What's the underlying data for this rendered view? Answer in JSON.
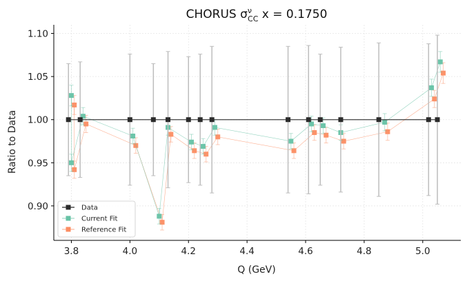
{
  "chart_data": {
    "type": "scatter",
    "title": "CHORUS σ",
    "title_sup": "ν",
    "title_sub": "CC",
    "title_suffix": " x = 0.1750",
    "xlabel": "Q (GeV)",
    "ylabel": "Ratio to Data",
    "xlim": [
      3.74,
      5.13
    ],
    "ylim": [
      0.86,
      1.11
    ],
    "xticks": [
      3.8,
      4.0,
      4.2,
      4.4,
      4.6,
      4.8,
      5.0
    ],
    "xtick_labels": [
      "3.8",
      "4.0",
      "4.2",
      "4.4",
      "4.6",
      "4.8",
      "5.0"
    ],
    "yticks": [
      0.9,
      0.95,
      1.0,
      1.05,
      1.1
    ],
    "ytick_labels": [
      "0.90",
      "0.95",
      "1.00",
      "1.05",
      "1.10"
    ],
    "grid": true,
    "legend_position": "lower-left",
    "series": [
      {
        "name": "Data",
        "color": "#2b2b2b",
        "x": [
          3.79,
          3.83,
          4.0,
          4.08,
          4.13,
          4.2,
          4.24,
          4.28,
          4.54,
          4.61,
          4.65,
          4.72,
          4.85,
          5.02,
          5.05
        ],
        "y": [
          1.0,
          1.0,
          1.0,
          1.0,
          1.0,
          1.0,
          1.0,
          1.0,
          1.0,
          1.0,
          1.0,
          1.0,
          1.0,
          1.0,
          1.0
        ],
        "err": [
          0.065,
          0.067,
          0.076,
          0.065,
          0.079,
          0.073,
          0.076,
          0.085,
          0.085,
          0.086,
          0.076,
          0.084,
          0.089,
          0.088,
          0.098
        ]
      },
      {
        "name": "Current Fit",
        "color": "#66c2a5",
        "x": [
          3.8,
          3.8,
          3.84,
          4.01,
          4.1,
          4.13,
          4.21,
          4.25,
          4.29,
          4.55,
          4.62,
          4.66,
          4.72,
          4.87,
          5.03,
          5.06
        ],
        "y": [
          1.028,
          0.95,
          1.004,
          0.981,
          0.888,
          0.991,
          0.974,
          0.969,
          0.991,
          0.975,
          0.995,
          0.993,
          0.985,
          0.997,
          1.037,
          1.067
        ],
        "err": [
          0.012,
          0.01,
          0.01,
          0.009,
          0.009,
          0.009,
          0.009,
          0.009,
          0.009,
          0.009,
          0.009,
          0.009,
          0.009,
          0.01,
          0.01,
          0.012
        ]
      },
      {
        "name": "Reference Fit",
        "color": "#fc8d62",
        "x": [
          3.81,
          3.81,
          3.85,
          4.02,
          4.11,
          4.14,
          4.22,
          4.26,
          4.3,
          4.56,
          4.63,
          4.67,
          4.73,
          4.88,
          5.04,
          5.07
        ],
        "y": [
          1.017,
          0.942,
          0.995,
          0.97,
          0.881,
          0.983,
          0.964,
          0.96,
          0.98,
          0.964,
          0.985,
          0.982,
          0.975,
          0.986,
          1.024,
          1.054
        ],
        "err": [
          0.011,
          0.01,
          0.01,
          0.009,
          0.009,
          0.009,
          0.009,
          0.009,
          0.009,
          0.009,
          0.009,
          0.009,
          0.009,
          0.01,
          0.01,
          0.012
        ]
      }
    ]
  }
}
